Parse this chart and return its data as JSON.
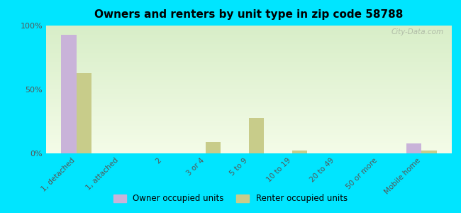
{
  "title": "Owners and renters by unit type in zip code 58788",
  "categories": [
    "1, detached",
    "1, attached",
    "2",
    "3 or 4",
    "5 to 9",
    "10 to 19",
    "20 to 49",
    "50 or more",
    "Mobile home"
  ],
  "owner_values": [
    93,
    0,
    0,
    0,
    0,
    0,
    0,
    0,
    8
  ],
  "renter_values": [
    63,
    0,
    0,
    9,
    28,
    2,
    0,
    0,
    2
  ],
  "owner_color": "#c9b3d9",
  "renter_color": "#c8cc8a",
  "outer_bg": "#00e5ff",
  "ylim": [
    0,
    100
  ],
  "yticks": [
    0,
    50,
    100
  ],
  "ytick_labels": [
    "0%",
    "50%",
    "100%"
  ],
  "bar_width": 0.35,
  "legend_owner": "Owner occupied units",
  "legend_renter": "Renter occupied units",
  "grad_top": "#d8eec8",
  "grad_bottom": "#f4fce8"
}
